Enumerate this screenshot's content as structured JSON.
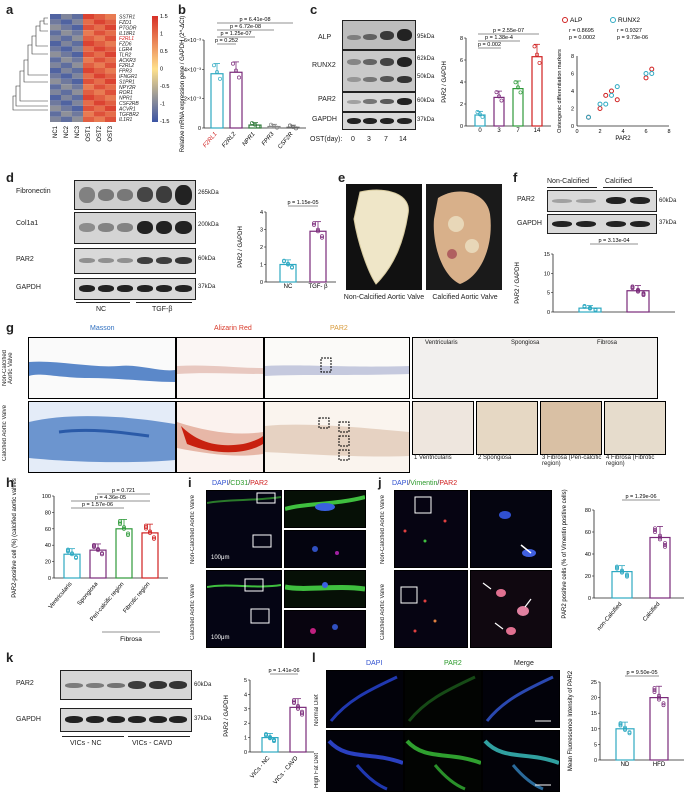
{
  "panels": {
    "a": "a",
    "b": "b",
    "c": "c",
    "d": "d",
    "e": "e",
    "f": "f",
    "g": "g",
    "h": "h",
    "i": "i",
    "j": "j",
    "k": "k",
    "l": "l"
  },
  "heatmap": {
    "genes": [
      "SSTR1",
      "FZD1",
      "PTGDR",
      "IL18R1",
      "F2RL1",
      "FZD6",
      "LGR4",
      "TLR2",
      "ACKR3",
      "F2RL2",
      "FPR3",
      "IFNGR1",
      "S1PR1",
      "NPY2R",
      "ROR1",
      "NPR1",
      "CSF2RB",
      "ACVR1",
      "TGFBR2",
      "IL1R1"
    ],
    "columns": [
      "NC1",
      "NC2",
      "NC3",
      "OST1",
      "OST2",
      "OST3"
    ],
    "scale": [
      "1.5",
      "1",
      "0.5",
      "0",
      "-0.5",
      "-1",
      "-1.5"
    ],
    "highlight": "F2RL1"
  },
  "b": {
    "ylabel": "Relative mRNA expression gene / GAPDH (2^-ΔCt)",
    "yticks": [
      "0",
      "2×10⁻³",
      "4×10⁻³",
      "6×10⁻³"
    ],
    "categories": [
      "F2RL1",
      "F2RL2",
      "NPR1",
      "FPR3",
      "CSF2R"
    ],
    "pvals": [
      "p = 6.41e-08",
      "p = 6.72e-08",
      "p = 1.25e-07",
      "p = 0.252"
    ]
  },
  "c": {
    "blots": [
      "ALP",
      "RUNX2",
      "PAR2",
      "GAPDH"
    ],
    "mw": [
      "95kDa",
      "62kDa",
      "50kDa",
      "60kDa",
      "37kDa"
    ],
    "days_label": "OST(day):",
    "days": [
      "0",
      "3",
      "7",
      "14"
    ],
    "ylabel": "PAR2 / GAPDH",
    "yticks": [
      "0",
      "2",
      "4",
      "6",
      "8"
    ],
    "pvals": [
      "p = 2.55e-07",
      "p = 1.38e-4",
      "p = 0.002"
    ],
    "corr": {
      "legend_alp": "ALP",
      "legend_runx2": "RUNX2",
      "r_alp": "r = 0.8695",
      "p_alp": "p = 0.0002",
      "r_runx2": "r = 0.9327",
      "p_runx2": "p = 9.73e-06",
      "ylabel": "Osteogenic differentiation markers",
      "xlabel": "PAR2",
      "xticks": [
        "0",
        "2",
        "4",
        "6",
        "8"
      ],
      "yticks": [
        "0",
        "2",
        "4",
        "6",
        "8"
      ]
    }
  },
  "d": {
    "blots": [
      "Fibronectin",
      "Col1a1",
      "PAR2",
      "GAPDH"
    ],
    "mw": [
      "265kDa",
      "200kDa",
      "60kDa",
      "37kDa"
    ],
    "groups": [
      "NC",
      "TGF-β"
    ],
    "pval": "p = 1.15e-05",
    "ylabel": "PAR2 / GAPDH",
    "yticks": [
      "0",
      "1",
      "2",
      "3",
      "4"
    ],
    "xcats": [
      "NC",
      "TGF- β"
    ]
  },
  "e": {
    "left": "Non-Calcified Aortic Valve",
    "right": "Calcified Aortic Valve"
  },
  "f": {
    "groups": [
      "Non-Calcified",
      "Calcified"
    ],
    "blots": [
      "PAR2",
      "GAPDH"
    ],
    "mw": [
      "60kDa",
      "37kDa"
    ],
    "pval": "p = 3.13e-04",
    "ylabel": "PAR2 / GAPDH",
    "yticks": [
      "0",
      "5",
      "10",
      "15"
    ]
  },
  "g": {
    "stains": [
      "Masson",
      "Alizarin Red",
      "PAR2"
    ],
    "rows": [
      "Non-Calcified Aortic Valve",
      "Calcified Aortic Valve"
    ],
    "layers": [
      "Ventricularis",
      "Spongiosa",
      "Fibrosa"
    ],
    "zoom": [
      "1 Ventricularis",
      "2 Spongiosa",
      "3 Fibrosa (Peri-calcific region)",
      "4 Fibrosa (Fibrotic region)"
    ]
  },
  "h": {
    "ylabel": "PAR2-positive cell (%) (calcified aortic valves)",
    "yticks": [
      "0",
      "20",
      "40",
      "60",
      "80",
      "100"
    ],
    "categories": [
      "Ventricularis",
      "Spongiosa",
      "Peri-calcific region",
      "Fibrotic region"
    ],
    "group": "Fibrosa",
    "pvals": [
      "p = 0.721",
      "p = 4.36e-05",
      "p = 1.57e-06"
    ]
  },
  "i": {
    "title_dapi": "DAPI",
    "title_cd31": "CD31",
    "title_par2": "PAR2",
    "rows": [
      "Non-Calcified Aortic Valve",
      "Calcified Aortic Valve"
    ],
    "scale": "100μm"
  },
  "j": {
    "title_dapi": "DAPI",
    "title_vim": "Vimentin",
    "title_par2": "PAR2",
    "rows": [
      "Non-Calcified Aortic Valve",
      "Calcified Aortic Valve"
    ],
    "pval": "p = 1.29e-06",
    "ylabel": "PAR2 positive cells (% of Vimentin positive cells)",
    "yticks": [
      "0",
      "20",
      "40",
      "60",
      "80"
    ],
    "xcats": [
      "non-Calcified",
      "Calcified"
    ]
  },
  "k": {
    "blots": [
      "PAR2",
      "GAPDH"
    ],
    "mw": [
      "60kDa",
      "37kDa"
    ],
    "groups": [
      "VICs - NC",
      "VICs - CAVD"
    ],
    "pval": "p = 1.41e-06",
    "ylabel": "PAR2 / GAPDH",
    "yticks": [
      "0",
      "1",
      "2",
      "3",
      "4",
      "5"
    ],
    "xcats": [
      "VICs - NC",
      "VICs - CAVD"
    ]
  },
  "l": {
    "cols": [
      "DAPI",
      "PAR2",
      "Merge"
    ],
    "rows": [
      "Normal Diet",
      "High Fat Diet"
    ],
    "pval": "p = 9.50e-05",
    "ylabel": "Mean Fluorescence Intensity of PAR2",
    "yticks": [
      "0",
      "5",
      "10",
      "15",
      "20",
      "25"
    ],
    "xcats": [
      "ND",
      "HFD"
    ]
  },
  "chart_data": [
    {
      "type": "bar",
      "panel": "b",
      "categories": [
        "F2RL1",
        "F2RL2",
        "NPR1",
        "FPR3",
        "CSF2R"
      ],
      "values": [
        0.0037,
        0.0038,
        0.0002,
        0.0001,
        5e-05
      ],
      "ylim": [
        0,
        0.006
      ],
      "ylabel": "Relative mRNA expression gene / GAPDH"
    },
    {
      "type": "bar",
      "panel": "c",
      "categories": [
        "0",
        "3",
        "7",
        "14"
      ],
      "values": [
        1.0,
        2.6,
        3.4,
        6.3
      ],
      "ylim": [
        0,
        8
      ],
      "ylabel": "PAR2 / GAPDH",
      "xlabel": "OST(day)"
    },
    {
      "type": "scatter",
      "panel": "c-corr",
      "series": [
        {
          "name": "ALP",
          "x": [
            1,
            2,
            2.5,
            3,
            3.5,
            6,
            6.5
          ],
          "y": [
            1,
            2,
            3.5,
            4,
            3,
            5.5,
            6.5
          ]
        },
        {
          "name": "RUNX2",
          "x": [
            1,
            2,
            2.5,
            3,
            3.5,
            6,
            6.5
          ],
          "y": [
            1,
            2.5,
            2.5,
            3.5,
            4.5,
            6,
            6
          ]
        }
      ],
      "xlim": [
        0,
        8
      ],
      "ylim": [
        0,
        8
      ],
      "xlabel": "PAR2",
      "ylabel": "Osteogenic differentiation markers"
    },
    {
      "type": "bar",
      "panel": "d",
      "categories": [
        "NC",
        "TGF-β"
      ],
      "values": [
        1.0,
        2.9
      ],
      "ylim": [
        0,
        4
      ],
      "ylabel": "PAR2 / GAPDH"
    },
    {
      "type": "bar",
      "panel": "f",
      "categories": [
        "Non-Calcified",
        "Calcified"
      ],
      "values": [
        1.0,
        5.5
      ],
      "ylim": [
        0,
        15
      ],
      "ylabel": "PAR2 / GAPDH"
    },
    {
      "type": "bar",
      "panel": "h",
      "categories": [
        "Ventricularis",
        "Spongiosa",
        "Peri-calcific region",
        "Fibrotic region"
      ],
      "values": [
        29,
        34,
        60,
        55
      ],
      "ylim": [
        0,
        100
      ],
      "ylabel": "PAR2-positive cell (%)"
    },
    {
      "type": "bar",
      "panel": "j",
      "categories": [
        "non-Calcified",
        "Calcified"
      ],
      "values": [
        24,
        55
      ],
      "ylim": [
        0,
        80
      ],
      "ylabel": "PAR2 positive cells (% of Vimentin positive cells)"
    },
    {
      "type": "bar",
      "panel": "k",
      "categories": [
        "VICs - NC",
        "VICs - CAVD"
      ],
      "values": [
        1.0,
        3.1
      ],
      "ylim": [
        0,
        5
      ],
      "ylabel": "PAR2 / GAPDH"
    },
    {
      "type": "bar",
      "panel": "l",
      "categories": [
        "ND",
        "HFD"
      ],
      "values": [
        10,
        20
      ],
      "ylim": [
        0,
        25
      ],
      "ylabel": "Mean Fluorescence Intensity of PAR2"
    }
  ]
}
